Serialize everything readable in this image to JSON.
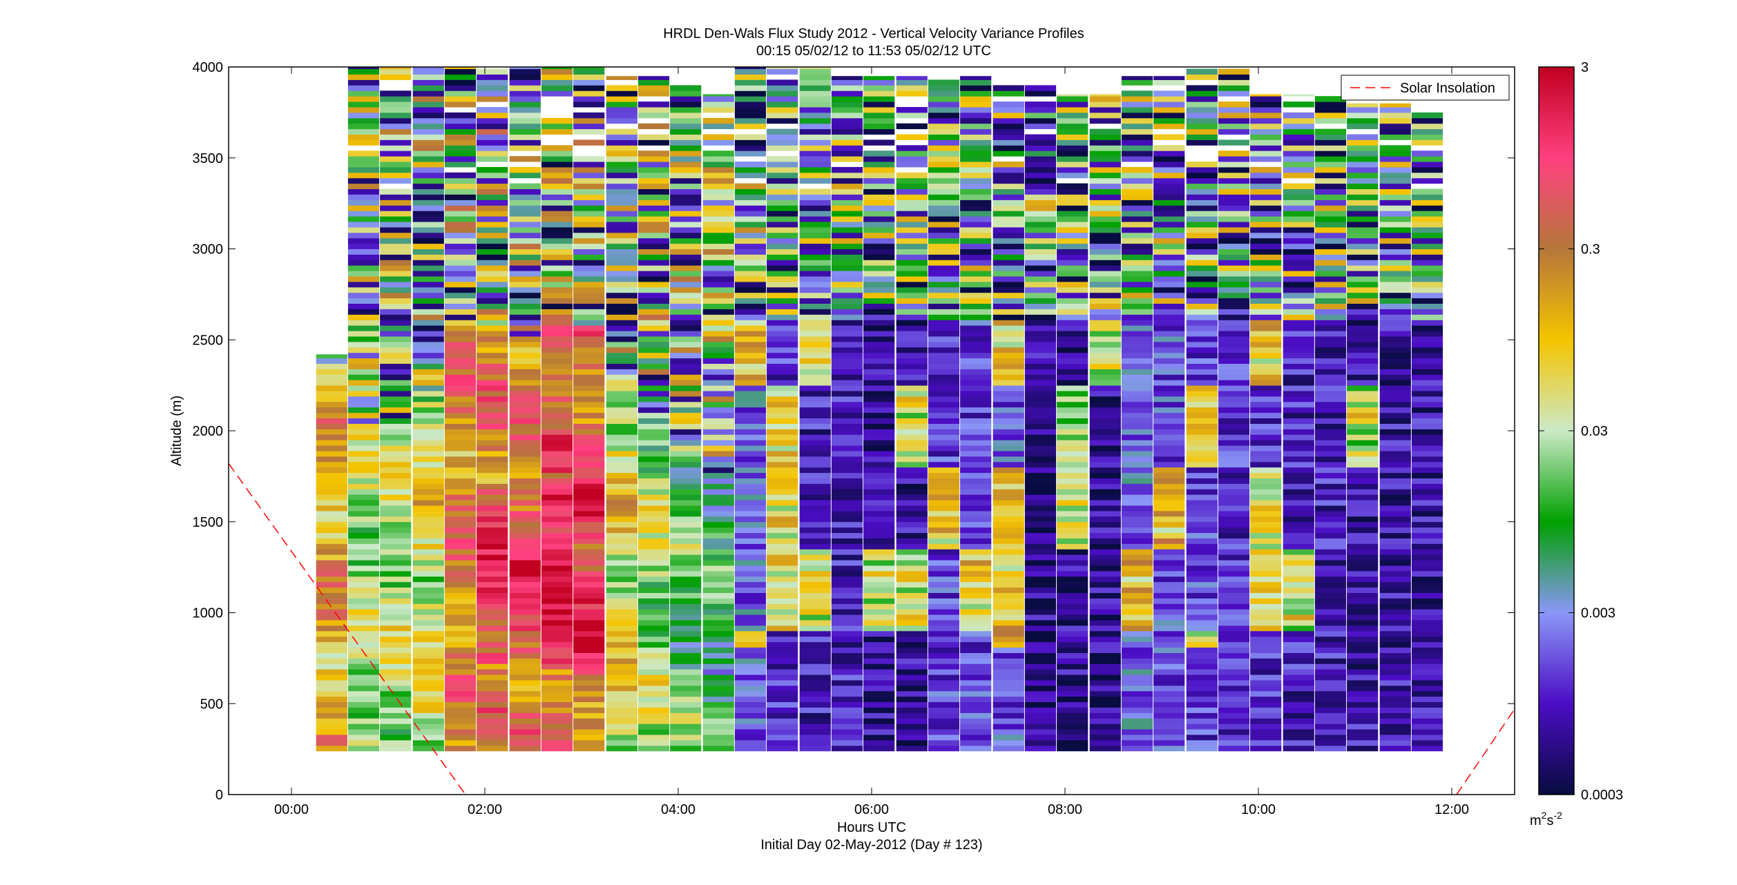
{
  "chart_data": {
    "type": "heatmap",
    "title": "HRDL Den-Wals Flux Study 2012 - Vertical Velocity Variance Profiles",
    "subtitle": "00:15 05/02/12 to 11:53 05/02/12  UTC",
    "xlabel": "Hours UTC",
    "xlabel2": "Initial Day 02-May-2012 (Day # 123)",
    "ylabel": "Altitude (m)",
    "xlim": [
      -0.65,
      12.65
    ],
    "ylim": [
      0,
      4000
    ],
    "x_ticks": [
      {
        "value": 0,
        "label": "00:00"
      },
      {
        "value": 2,
        "label": "02:00"
      },
      {
        "value": 4,
        "label": "04:00"
      },
      {
        "value": 6,
        "label": "06:00"
      },
      {
        "value": 8,
        "label": "08:00"
      },
      {
        "value": 10,
        "label": "10:00"
      },
      {
        "value": 12,
        "label": "12:00"
      }
    ],
    "y_ticks": [
      {
        "value": 0,
        "label": "0"
      },
      {
        "value": 500,
        "label": "500"
      },
      {
        "value": 1000,
        "label": "1000"
      },
      {
        "value": 1500,
        "label": "1500"
      },
      {
        "value": 2000,
        "label": "2000"
      },
      {
        "value": 2500,
        "label": "2500"
      },
      {
        "value": 3000,
        "label": "3000"
      },
      {
        "value": 3500,
        "label": "3500"
      },
      {
        "value": 4000,
        "label": "4000"
      }
    ],
    "legend": {
      "label": "Solar Insolation",
      "placement": "top-right",
      "color": "#ff0000",
      "style": "dashed"
    },
    "solar_insolation_line": [
      {
        "x": -0.65,
        "y": 1820
      },
      {
        "x": 1.8,
        "y": 0
      },
      {
        "x": 12.05,
        "y": 0
      },
      {
        "x": 12.65,
        "y": 470
      }
    ],
    "colorbar": {
      "scale": "log",
      "min": 0.0003,
      "max": 3,
      "ticks": [
        {
          "value": 3,
          "label": "3"
        },
        {
          "value": 0.3,
          "label": "0.3"
        },
        {
          "value": 0.03,
          "label": "0.03"
        },
        {
          "value": 0.003,
          "label": "0.003"
        },
        {
          "value": 0.0003,
          "label": "0.0003"
        }
      ],
      "unit_base": "m",
      "unit_sup1": "2",
      "unit_mid": "s",
      "unit_sup2": "-2",
      "stops": [
        "#080c40",
        "#4b0dc4",
        "#8a97f7",
        "#00a000",
        "#cbe9c7",
        "#f5c400",
        "#b5773a",
        "#ff4080",
        "#c00020"
      ]
    },
    "profiles": [
      {
        "t": 0.42,
        "top": 2420,
        "regime": 1.1,
        "top_noise": 0.0
      },
      {
        "t": 0.75,
        "top": 4000,
        "regime": 0.55,
        "top_noise": 0.35
      },
      {
        "t": 1.08,
        "top": 4000,
        "regime": 0.6,
        "top_noise": 0.4
      },
      {
        "t": 1.42,
        "top": 4000,
        "regime": 0.75,
        "top_noise": 0.45
      },
      {
        "t": 1.75,
        "top": 4000,
        "regime": 1.3,
        "top_noise": 0.55
      },
      {
        "t": 2.08,
        "top": 4000,
        "regime": 1.4,
        "top_noise": 0.55
      },
      {
        "t": 2.42,
        "top": 4000,
        "regime": 1.35,
        "top_noise": 0.45
      },
      {
        "t": 2.75,
        "top": 4000,
        "regime": 1.55,
        "top_noise": 0.45
      },
      {
        "t": 3.08,
        "top": 4000,
        "regime": 1.45,
        "top_noise": 0.45
      },
      {
        "t": 3.42,
        "top": 3950,
        "regime": 0.8,
        "top_noise": 0.45
      },
      {
        "t": 3.75,
        "top": 3950,
        "regime": 0.5,
        "top_noise": 0.45
      },
      {
        "t": 4.08,
        "top": 3900,
        "regime": 0.25,
        "top_noise": 0.4
      },
      {
        "t": 4.42,
        "top": 3850,
        "regime": 0.1,
        "top_noise": 0.4
      },
      {
        "t": 4.75,
        "top": 4000,
        "regime": -0.3,
        "top_noise": 0.4
      },
      {
        "t": 5.08,
        "top": 4000,
        "regime": -0.6,
        "top_noise": 0.2
      },
      {
        "t": 5.42,
        "top": 4000,
        "regime": -0.7,
        "top_noise": 0.15
      },
      {
        "t": 5.75,
        "top": 3950,
        "regime": -0.7,
        "top_noise": 0.3
      },
      {
        "t": 6.08,
        "top": 3950,
        "regime": -0.9,
        "top_noise": 0.3
      },
      {
        "t": 6.42,
        "top": 3950,
        "regime": -0.85,
        "top_noise": 0.3
      },
      {
        "t": 6.75,
        "top": 3950,
        "regime": -0.5,
        "top_noise": 0.3
      },
      {
        "t": 7.08,
        "top": 3950,
        "regime": -0.5,
        "top_noise": 0.3
      },
      {
        "t": 7.42,
        "top": 3900,
        "regime": -0.4,
        "top_noise": 0.3
      },
      {
        "t": 7.75,
        "top": 3900,
        "regime": -0.9,
        "top_noise": 0.3
      },
      {
        "t": 8.08,
        "top": 3850,
        "regime": -0.9,
        "top_noise": 0.3
      },
      {
        "t": 8.42,
        "top": 3850,
        "regime": -0.9,
        "top_noise": 0.3
      },
      {
        "t": 8.75,
        "top": 3950,
        "regime": -0.3,
        "top_noise": 0.3
      },
      {
        "t": 9.08,
        "top": 3950,
        "regime": -0.4,
        "top_noise": 0.3
      },
      {
        "t": 9.42,
        "top": 4000,
        "regime": -0.5,
        "top_noise": 0.3
      },
      {
        "t": 9.75,
        "top": 4000,
        "regime": -0.6,
        "top_noise": 0.3
      },
      {
        "t": 10.08,
        "top": 3850,
        "regime": -0.6,
        "top_noise": 0.3
      },
      {
        "t": 10.42,
        "top": 3850,
        "regime": -0.7,
        "top_noise": 0.3
      },
      {
        "t": 10.75,
        "top": 3850,
        "regime": -0.7,
        "top_noise": 0.3
      },
      {
        "t": 11.08,
        "top": 3800,
        "regime": -0.8,
        "top_noise": 0.3
      },
      {
        "t": 11.42,
        "top": 3800,
        "regime": -0.8,
        "top_noise": 0.3
      },
      {
        "t": 11.75,
        "top": 3750,
        "regime": -0.8,
        "top_noise": 0.3
      }
    ],
    "profile_bottom": 240,
    "profile_width_hours": 0.33
  }
}
